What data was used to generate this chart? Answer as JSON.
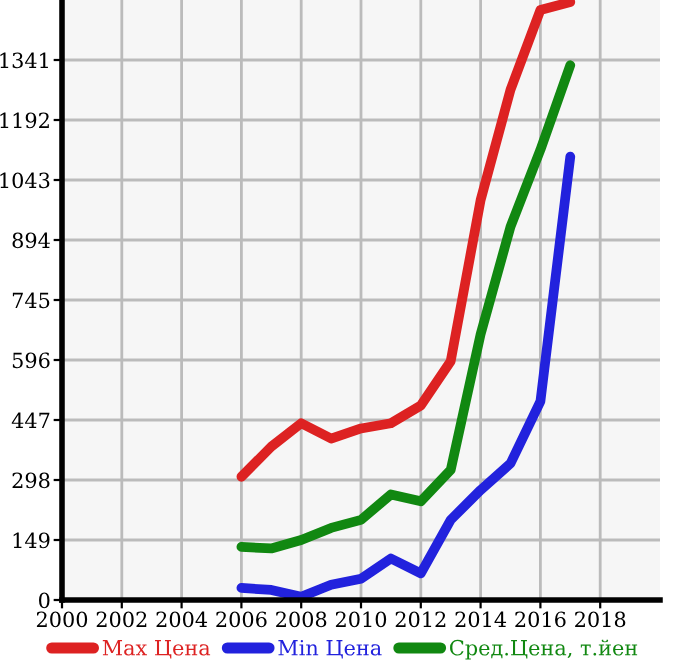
{
  "chart_data": {
    "type": "line",
    "x": [
      2006,
      2007,
      2008,
      2009,
      2010,
      2011,
      2012,
      2013,
      2014,
      2015,
      2016,
      2017
    ],
    "series": [
      {
        "name": "Max Цена",
        "color": "#dd2222",
        "values": [
          306,
          381,
          439,
          401,
          426,
          439,
          483,
          593,
          993,
          1267,
          1465,
          1485
        ]
      },
      {
        "name": "Min Цена",
        "color": "#2222dd",
        "values": [
          30,
          25,
          8,
          38,
          53,
          103,
          66,
          199,
          273,
          339,
          493,
          1101
        ]
      },
      {
        "name": "Сред.Цена, т.йен",
        "color": "#118811",
        "values": [
          132,
          128,
          149,
          179,
          199,
          262,
          245,
          323,
          660,
          927,
          1118,
          1328
        ]
      }
    ],
    "xlim": [
      2000,
      2020
    ],
    "xticks": [
      2000,
      2002,
      2004,
      2006,
      2008,
      2010,
      2012,
      2014,
      2016,
      2018
    ],
    "ylim": [
      0,
      1490
    ],
    "yticks": [
      0,
      149,
      298,
      447,
      596,
      745,
      894,
      1043,
      1192,
      1341
    ],
    "grid": true,
    "legend": "bottom",
    "marker": "none",
    "line_style": "solid"
  }
}
